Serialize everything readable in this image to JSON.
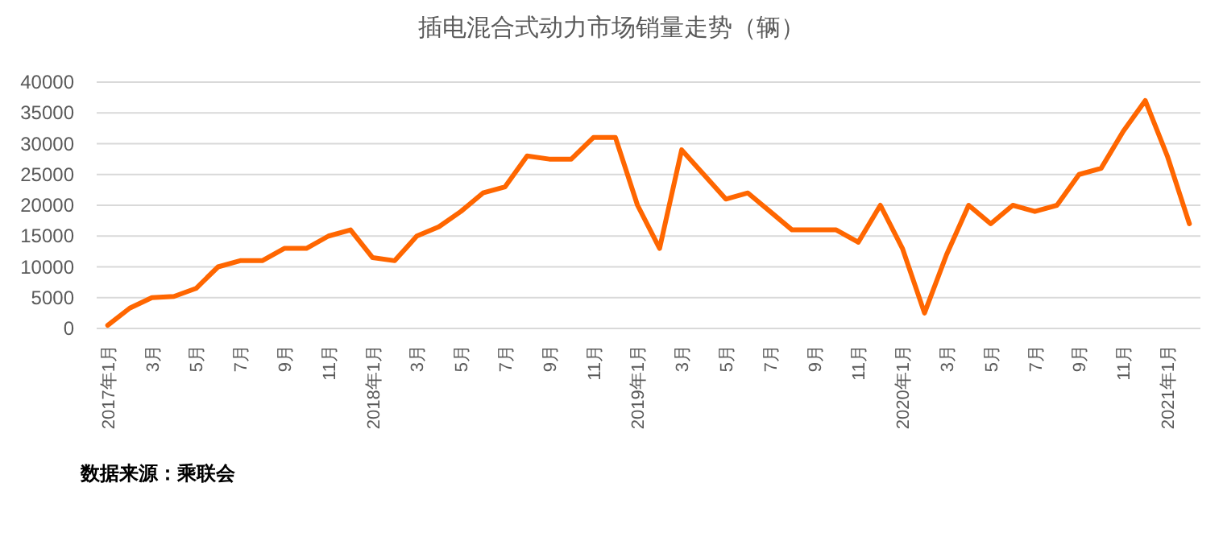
{
  "chart_data": {
    "type": "line",
    "title": "插电混合式动力市场销量走势（辆）",
    "categories": [
      "2017年1月",
      null,
      "3月",
      null,
      "5月",
      null,
      "7月",
      null,
      "9月",
      null,
      "11月",
      null,
      "2018年1月",
      null,
      "3月",
      null,
      "5月",
      null,
      "7月",
      null,
      "9月",
      null,
      "11月",
      null,
      "2019年1月",
      null,
      "3月",
      null,
      "5月",
      null,
      "7月",
      null,
      "9月",
      null,
      "11月",
      null,
      "2020年1月",
      null,
      "3月",
      null,
      "5月",
      null,
      "7月",
      null,
      "9月",
      null,
      "11月",
      null,
      "2021年1月",
      null
    ],
    "series": [
      {
        "color": "#ff6600",
        "values": [
          500,
          3300,
          5000,
          5200,
          6500,
          10000,
          11000,
          11000,
          13000,
          13000,
          15000,
          16000,
          11500,
          11000,
          15000,
          16500,
          19000,
          22000,
          23000,
          28000,
          27500,
          27500,
          31000,
          31000,
          20000,
          13000,
          29000,
          25000,
          21000,
          22000,
          19000,
          16000,
          16000,
          16000,
          14000,
          20000,
          13000,
          2500,
          12000,
          20000,
          17000,
          20000,
          19000,
          20000,
          25000,
          26000,
          32000,
          37000,
          28000,
          17000
        ]
      }
    ],
    "ylim": [
      0,
      40000
    ],
    "yticks": [
      0,
      5000,
      10000,
      15000,
      20000,
      25000,
      30000,
      35000,
      40000
    ],
    "grid": "y",
    "annotations": [
      "数据来源：乘联会"
    ]
  }
}
